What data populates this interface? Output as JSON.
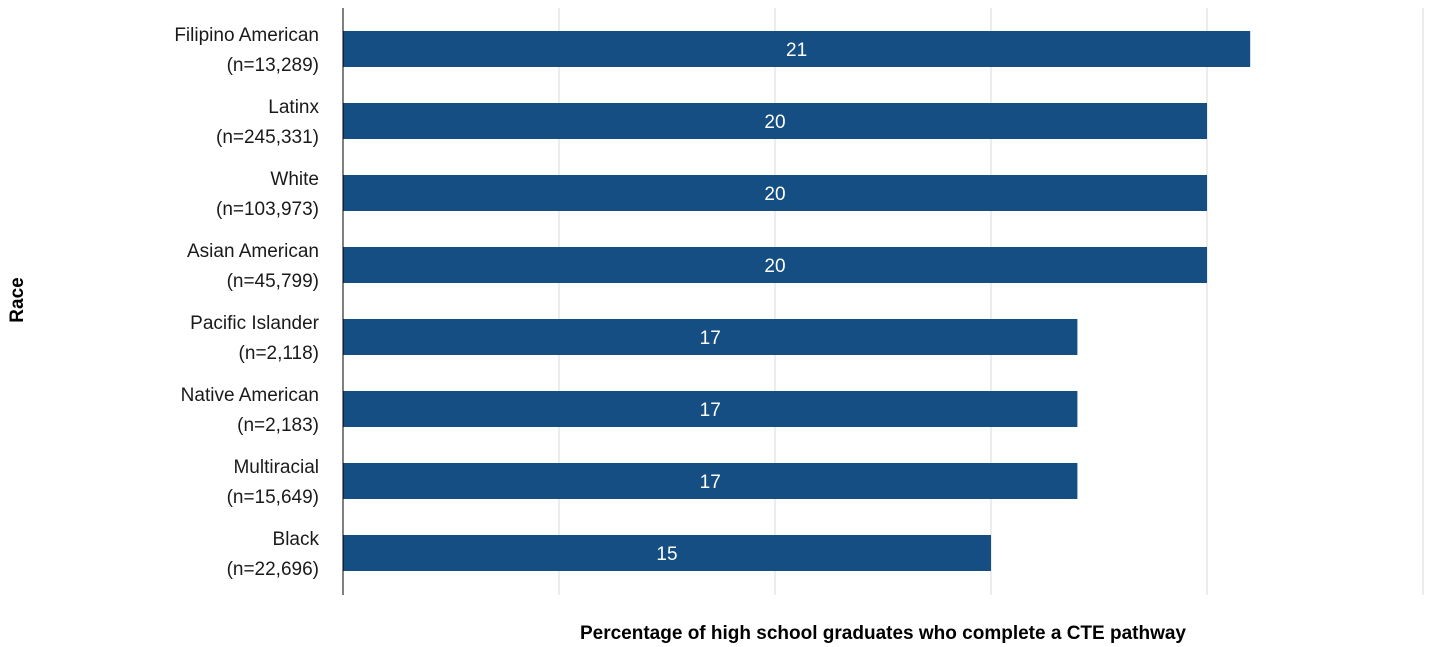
{
  "chart_data": {
    "type": "bar",
    "orientation": "horizontal",
    "categories": [
      [
        "Filipino American",
        "(n=13,289)"
      ],
      [
        "Latinx",
        "(n=245,331)"
      ],
      [
        "White",
        "(n=103,973)"
      ],
      [
        "Asian American",
        "(n=45,799)"
      ],
      [
        "Pacific Islander",
        "(n=2,118)"
      ],
      [
        "Native American",
        "(n=2,183)"
      ],
      [
        "Multiracial",
        "(n=15,649)"
      ],
      [
        "Black",
        "(n=22,696)"
      ]
    ],
    "values": [
      21,
      20,
      20,
      20,
      17,
      17,
      17,
      15
    ],
    "data_labels": [
      "21",
      "20",
      "20",
      "20",
      "17",
      "17",
      "17",
      "15"
    ],
    "title": "",
    "xlabel": "Percentage of high school graduates who complete a CTE pathway",
    "ylabel": "Race",
    "xlim": [
      0,
      25
    ],
    "grid": true,
    "colors": {
      "bar": "#154e82",
      "grid": "#d9d9d9",
      "axis": "#000000"
    }
  }
}
